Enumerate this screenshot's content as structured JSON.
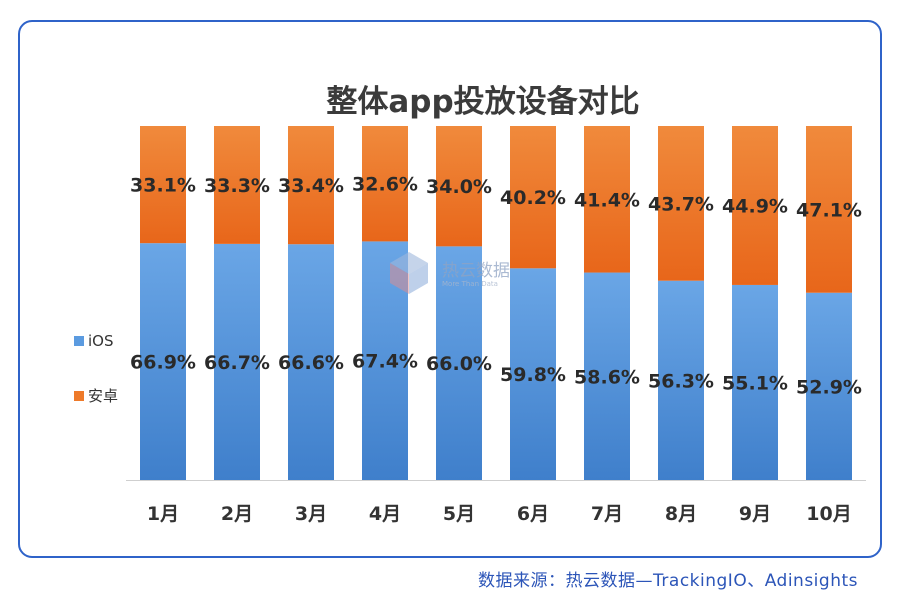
{
  "chart_data": {
    "type": "bar",
    "stacked": true,
    "title": "整体app投放设备对比",
    "categories": [
      "1月",
      "2月",
      "3月",
      "4月",
      "5月",
      "6月",
      "7月",
      "8月",
      "9月",
      "10月"
    ],
    "series": [
      {
        "name": "iOS",
        "color": "#5b9be0",
        "values": [
          66.9,
          66.7,
          66.6,
          67.4,
          66.0,
          59.8,
          58.6,
          56.3,
          55.1,
          52.9
        ]
      },
      {
        "name": "安卓",
        "color": "#ee7a2a",
        "values": [
          33.1,
          33.3,
          33.4,
          32.6,
          34.0,
          40.2,
          41.4,
          43.7,
          44.9,
          47.1
        ]
      }
    ],
    "value_suffix": "%",
    "ylim": [
      0,
      100
    ],
    "legend_position": "left",
    "grid": false
  },
  "watermark": {
    "icon": "cube-logo-icon",
    "name": "热云数据",
    "tagline": "More Than Data"
  },
  "source_text": "数据来源：热云数据—TrackingIO、Adinsights"
}
